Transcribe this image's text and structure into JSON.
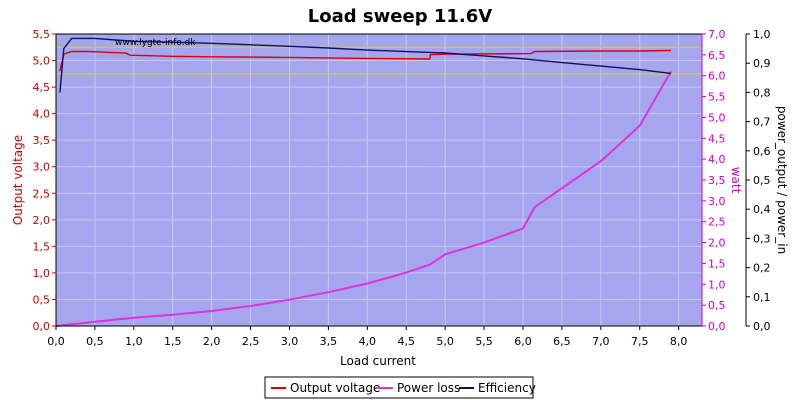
{
  "chart_data": {
    "type": "line",
    "title": "Load sweep 11.6V",
    "watermark": "www.lygte-info.dk",
    "xlabel": "Load current",
    "ylabel_left": "Output voltage",
    "ylabel_right1": "watt",
    "ylabel_right2": "power_output / power_in",
    "xlim": [
      0,
      8.3
    ],
    "ylim_left": [
      0,
      5.5
    ],
    "ylim_right1": [
      0,
      7
    ],
    "ylim_right2": [
      0,
      1
    ],
    "x_ticks": [
      "0,0",
      "0,5",
      "1,0",
      "1,5",
      "2,0",
      "2,5",
      "3,0",
      "3,5",
      "4,0",
      "4,5",
      "5,0",
      "5,5",
      "6,0",
      "6,5",
      "7,0",
      "7,5",
      "8,0"
    ],
    "x_tick_values": [
      0,
      0.5,
      1,
      1.5,
      2,
      2.5,
      3,
      3.5,
      4,
      4.5,
      5,
      5.5,
      6,
      6.5,
      7,
      7.5,
      8
    ],
    "y_left_ticks": [
      "0,0",
      "0,5",
      "1,0",
      "1,5",
      "2,0",
      "2,5",
      "3,0",
      "3,5",
      "4,0",
      "4,5",
      "5,0",
      "5,5"
    ],
    "y_left_tick_values": [
      0,
      0.5,
      1,
      1.5,
      2,
      2.5,
      3,
      3.5,
      4,
      4.5,
      5,
      5.5
    ],
    "y_right1_ticks": [
      "0,0",
      "0,5",
      "1,0",
      "1,5",
      "2,0",
      "2,5",
      "3,0",
      "3,5",
      "4,0",
      "4,5",
      "5,0",
      "5,5",
      "6,0",
      "6,5",
      "7,0"
    ],
    "y_right1_tick_values": [
      0,
      0.5,
      1,
      1.5,
      2,
      2.5,
      3,
      3.5,
      4,
      4.5,
      5,
      5.5,
      6,
      6.5,
      7
    ],
    "y_right2_ticks": [
      "0,0",
      "0,1",
      "0,2",
      "0,3",
      "0,4",
      "0,5",
      "0,6",
      "0,7",
      "0,8",
      "0,9",
      "1,0"
    ],
    "y_right2_tick_values": [
      0,
      0.1,
      0.2,
      0.3,
      0.4,
      0.5,
      0.6,
      0.7,
      0.8,
      0.9,
      1.0
    ],
    "reference_lines_left": [
      5.25,
      4.75
    ],
    "grid": true,
    "legend_position": "bottom",
    "colors": {
      "plot_bg": "#a6a6ee",
      "grid": "#c8c8f4",
      "output_voltage": "#dd0000",
      "power_loss": "#dd33dd",
      "efficiency": "#101060",
      "reference": "#d8d800",
      "left_axis": "#cc0000",
      "right1_axis": "#cc00cc",
      "right2_axis": "#000000"
    },
    "series": [
      {
        "name": "Output voltage",
        "axis": "left",
        "x": [
          0.05,
          0.1,
          0.2,
          0.4,
          0.6,
          0.9,
          0.95,
          1.5,
          2.0,
          3.0,
          3.5,
          4.0,
          4.8,
          4.81,
          5.0,
          6.1,
          6.15,
          7.0,
          7.5,
          7.9
        ],
        "y": [
          4.8,
          5.12,
          5.17,
          5.17,
          5.16,
          5.14,
          5.1,
          5.08,
          5.07,
          5.06,
          5.05,
          5.04,
          5.03,
          5.11,
          5.12,
          5.13,
          5.17,
          5.18,
          5.18,
          5.19
        ]
      },
      {
        "name": "Power loss",
        "axis": "right1",
        "x": [
          0,
          0.5,
          1.0,
          1.5,
          2.0,
          2.5,
          3.0,
          3.5,
          4.0,
          4.5,
          4.8,
          5.0,
          5.5,
          6.0,
          6.15,
          6.5,
          7.0,
          7.5,
          7.9
        ],
        "y": [
          0.0,
          0.1,
          0.2,
          0.27,
          0.36,
          0.48,
          0.63,
          0.81,
          1.02,
          1.28,
          1.47,
          1.72,
          2.0,
          2.34,
          2.85,
          3.3,
          3.95,
          4.8,
          6.1
        ]
      },
      {
        "name": "Efficiency",
        "axis": "right2",
        "x": [
          0.05,
          0.1,
          0.2,
          0.5,
          1.0,
          1.5,
          2.0,
          3.0,
          3.5,
          4.0,
          4.8,
          5.0,
          5.5,
          6.0,
          6.5,
          7.0,
          7.5,
          7.9
        ],
        "y": [
          0.8,
          0.95,
          0.985,
          0.985,
          0.975,
          0.972,
          0.968,
          0.958,
          0.952,
          0.945,
          0.937,
          0.935,
          0.925,
          0.915,
          0.902,
          0.89,
          0.878,
          0.865
        ]
      }
    ]
  }
}
